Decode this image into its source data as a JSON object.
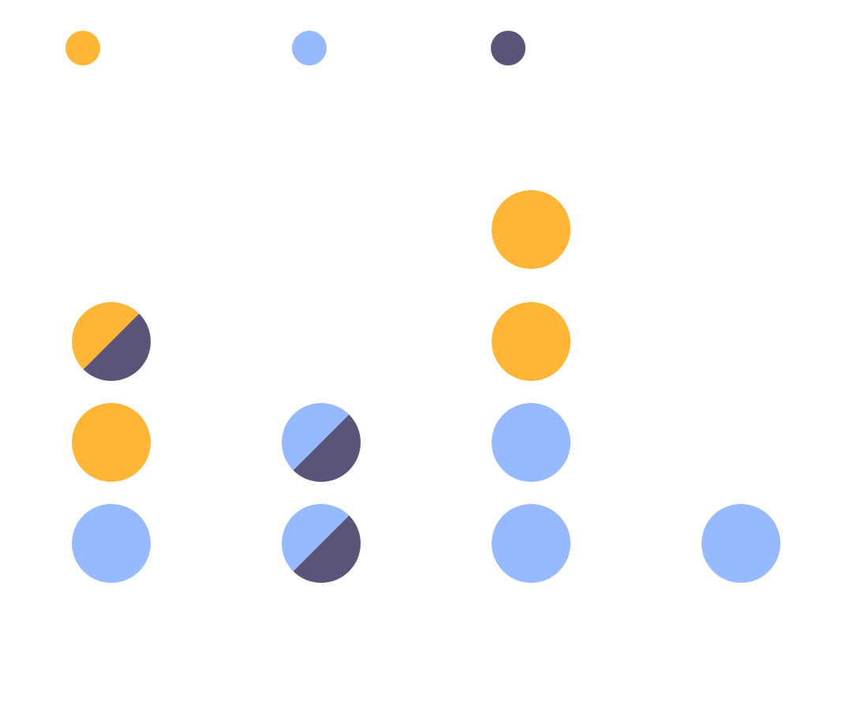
{
  "colors": {
    "background": "#ffffff",
    "orange": "#ffb636",
    "light_blue": "#97b9ff",
    "dark_purple": "#5b5479"
  },
  "chart_data": {
    "type": "dot-matrix",
    "title": "",
    "xlabel": "",
    "ylabel": "",
    "legend": {
      "placement": "top",
      "entries": [
        {
          "name": "",
          "color": "#ffb636"
        },
        {
          "name": "",
          "color": "#97b9ff"
        },
        {
          "name": "",
          "color": "#5b5479"
        }
      ]
    },
    "grid": false,
    "columns": [
      {
        "index": 1,
        "dots": [
          {
            "row": 1,
            "colors": [
              "#97b9ff"
            ]
          },
          {
            "row": 2,
            "colors": [
              "#ffb636"
            ]
          },
          {
            "row": 3,
            "colors": [
              "#ffb636",
              "#5b5479"
            ]
          }
        ]
      },
      {
        "index": 2,
        "dots": [
          {
            "row": 1,
            "colors": [
              "#97b9ff",
              "#5b5479"
            ]
          },
          {
            "row": 2,
            "colors": [
              "#97b9ff",
              "#5b5479"
            ]
          }
        ]
      },
      {
        "index": 3,
        "dots": [
          {
            "row": 1,
            "colors": [
              "#97b9ff"
            ]
          },
          {
            "row": 2,
            "colors": [
              "#97b9ff"
            ]
          },
          {
            "row": 3,
            "colors": [
              "#ffb636"
            ]
          },
          {
            "row": 4,
            "colors": [
              "#ffb636"
            ]
          }
        ]
      },
      {
        "index": 4,
        "dots": [
          {
            "row": 1,
            "colors": [
              "#97b9ff"
            ]
          }
        ]
      }
    ]
  }
}
